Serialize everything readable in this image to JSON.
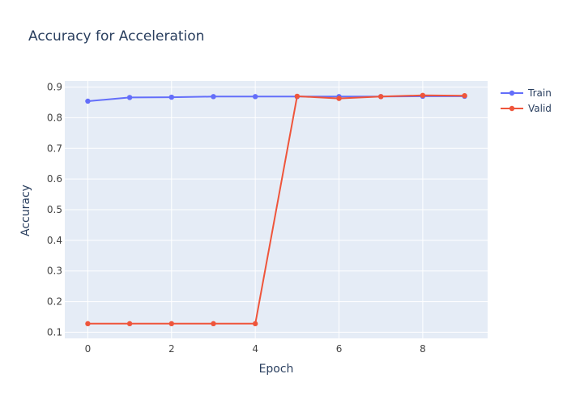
{
  "colors": {
    "background": "#ffffff",
    "plot_background": "#e5ecf6",
    "grid": "#ffffff",
    "text": "#2a3f5f",
    "tick_text": "#444444"
  },
  "chart_data": {
    "type": "line",
    "title": "Accuracy for Acceleration",
    "xlabel": "Epoch",
    "ylabel": "Accuracy",
    "x": [
      0,
      1,
      2,
      3,
      4,
      5,
      6,
      7,
      8,
      9
    ],
    "xlim": [
      -0.55,
      9.55
    ],
    "ylim": [
      0.08,
      0.92
    ],
    "x_ticks": [
      0,
      2,
      4,
      6,
      8
    ],
    "y_ticks": [
      0.1,
      0.2,
      0.3,
      0.4,
      0.5,
      0.6,
      0.7,
      0.8,
      0.9
    ],
    "grid": true,
    "legend_position": "top-right",
    "series": [
      {
        "name": "Train",
        "color": "#636efa",
        "values": [
          0.854,
          0.866,
          0.867,
          0.869,
          0.869,
          0.869,
          0.869,
          0.869,
          0.87,
          0.87
        ]
      },
      {
        "name": "Valid",
        "color": "#ef553b",
        "values": [
          0.128,
          0.128,
          0.128,
          0.128,
          0.128,
          0.87,
          0.863,
          0.869,
          0.873,
          0.872
        ]
      }
    ]
  }
}
